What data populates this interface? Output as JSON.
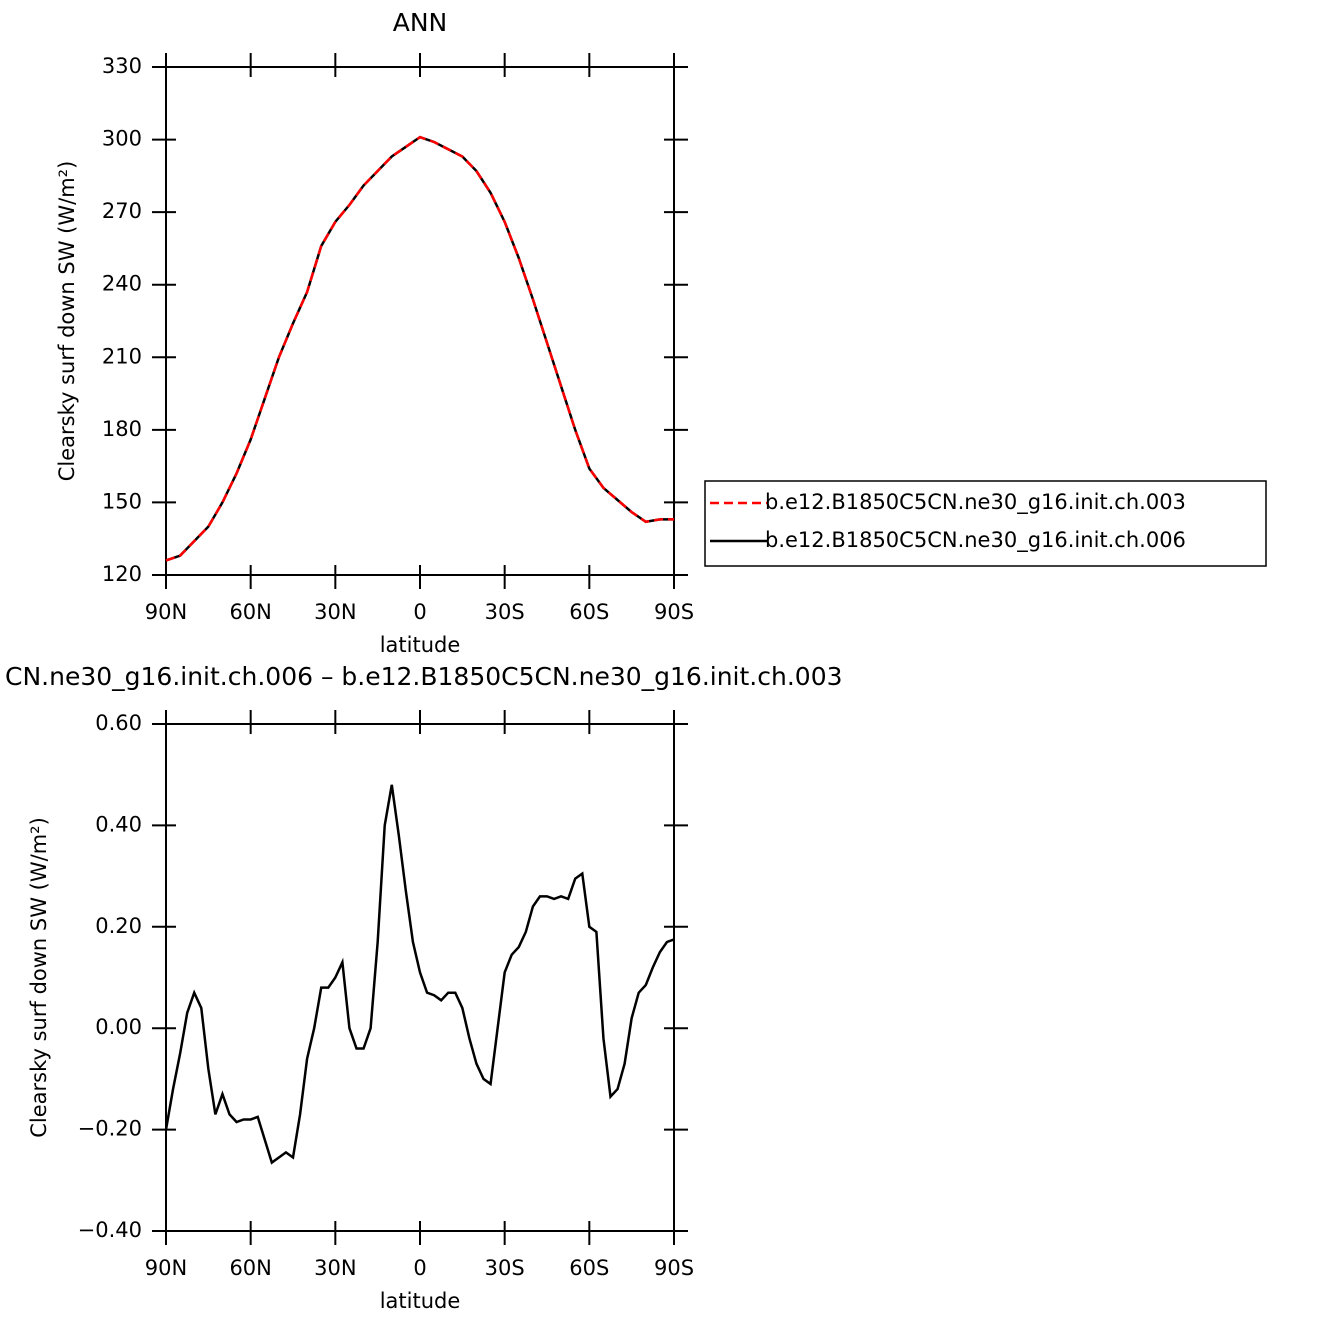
{
  "chart_data": [
    {
      "type": "line",
      "title": "ANN",
      "ylabel": "Clearsky surf down SW (W/m²)",
      "xlabel": "latitude",
      "xlim": [
        90,
        -90
      ],
      "ylim": [
        120,
        330
      ],
      "xticks": [
        {
          "value": 90,
          "label": "90N"
        },
        {
          "value": 60,
          "label": "60N"
        },
        {
          "value": 30,
          "label": "30N"
        },
        0,
        {
          "value": -30,
          "label": "30S"
        },
        {
          "value": -60,
          "label": "60S"
        },
        {
          "value": -90,
          "label": "90S"
        }
      ],
      "yticks": [
        120,
        150,
        180,
        210,
        240,
        270,
        300,
        330
      ],
      "x": [
        90,
        85,
        80,
        75,
        70,
        65,
        60,
        55,
        50,
        45,
        40,
        35,
        30,
        25,
        20,
        15,
        10,
        5,
        0,
        -5,
        -10,
        -15,
        -20,
        -25,
        -30,
        -35,
        -40,
        -45,
        -50,
        -55,
        -60,
        -65,
        -70,
        -75,
        -80,
        -85,
        -90
      ],
      "series": [
        {
          "name": "b.e12.B1850C5CN.ne30_g16.init.ch.006",
          "color": "#000000",
          "style": "solid",
          "values": [
            126,
            128,
            134,
            140,
            150,
            162,
            176,
            193,
            210,
            224,
            237,
            256,
            266,
            273,
            281,
            287,
            293,
            297,
            301,
            299,
            296,
            293,
            287,
            278,
            266,
            251,
            234,
            216,
            198,
            180,
            164,
            156,
            151,
            146,
            142,
            143,
            143
          ]
        },
        {
          "name": "b.e12.B1850C5CN.ne30_g16.init.ch.003",
          "color": "#ff0000",
          "style": "dashed",
          "values": [
            126,
            128,
            134,
            140,
            150,
            162,
            176,
            193,
            210,
            224,
            237,
            256,
            266,
            273,
            281,
            287,
            293,
            297,
            301,
            299,
            296,
            293,
            287,
            278,
            266,
            251,
            234,
            216,
            198,
            180,
            164,
            156,
            151,
            146,
            142,
            143,
            143
          ]
        }
      ],
      "legend": "right"
    },
    {
      "type": "line",
      "title": "CN.ne30_g16.init.ch.006 – b.e12.B1850C5CN.ne30_g16.init.ch.003",
      "ylabel": "Clearsky surf down SW (W/m²)",
      "xlabel": "latitude",
      "xlim": [
        90,
        -90
      ],
      "ylim": [
        -0.4,
        0.6
      ],
      "xticks": [
        {
          "value": 90,
          "label": "90N"
        },
        {
          "value": 60,
          "label": "60N"
        },
        {
          "value": 30,
          "label": "30N"
        },
        0,
        {
          "value": -30,
          "label": "30S"
        },
        {
          "value": -60,
          "label": "60S"
        },
        {
          "value": -90,
          "label": "90S"
        }
      ],
      "yticks": [
        {
          "value": -0.4,
          "label": "−0.40"
        },
        {
          "value": -0.2,
          "label": "−0.20"
        },
        {
          "value": 0,
          "label": "0.00"
        },
        {
          "value": 0.2,
          "label": "0.20"
        },
        {
          "value": 0.4,
          "label": "0.40"
        },
        {
          "value": 0.6,
          "label": "0.60"
        }
      ],
      "x": [
        90,
        87.5,
        85,
        82.5,
        80,
        77.5,
        75,
        72.5,
        70,
        67.5,
        65,
        62.5,
        60,
        57.5,
        55,
        52.5,
        50,
        47.5,
        45,
        42.5,
        40,
        37.5,
        35,
        32.5,
        30,
        27.5,
        25,
        22.5,
        20,
        17.5,
        15,
        12.5,
        10,
        7.5,
        5,
        2.5,
        0,
        -2.5,
        -5,
        -7.5,
        -10,
        -12.5,
        -15,
        -17.5,
        -20,
        -22.5,
        -25,
        -27.5,
        -30,
        -32.5,
        -35,
        -37.5,
        -40,
        -42.5,
        -45,
        -47.5,
        -50,
        -52.5,
        -55,
        -57.5,
        -60,
        -62.5,
        -65,
        -67.5,
        -70,
        -72.5,
        -75,
        -77.5,
        -80,
        -82.5,
        -85,
        -87.5,
        -90
      ],
      "series": [
        {
          "color": "#000000",
          "style": "solid",
          "values": [
            -0.2,
            -0.12,
            -0.05,
            0.03,
            0.07,
            0.04,
            -0.08,
            -0.17,
            -0.13,
            -0.17,
            -0.185,
            -0.18,
            -0.18,
            -0.175,
            -0.22,
            -0.265,
            -0.255,
            -0.245,
            -0.255,
            -0.17,
            -0.06,
            0.0,
            0.08,
            0.08,
            0.1,
            0.13,
            0.0,
            -0.04,
            -0.04,
            0.0,
            0.17,
            0.4,
            0.48,
            0.38,
            0.27,
            0.17,
            0.11,
            0.07,
            0.065,
            0.055,
            0.07,
            0.07,
            0.04,
            -0.02,
            -0.07,
            -0.1,
            -0.11,
            0.0,
            0.11,
            0.145,
            0.16,
            0.19,
            0.24,
            0.26,
            0.26,
            0.255,
            0.26,
            0.255,
            0.295,
            0.305,
            0.2,
            0.19,
            -0.02,
            -0.135,
            -0.12,
            -0.07,
            0.02,
            0.07,
            0.085,
            0.12,
            0.15,
            0.17,
            0.175
          ]
        }
      ]
    }
  ]
}
